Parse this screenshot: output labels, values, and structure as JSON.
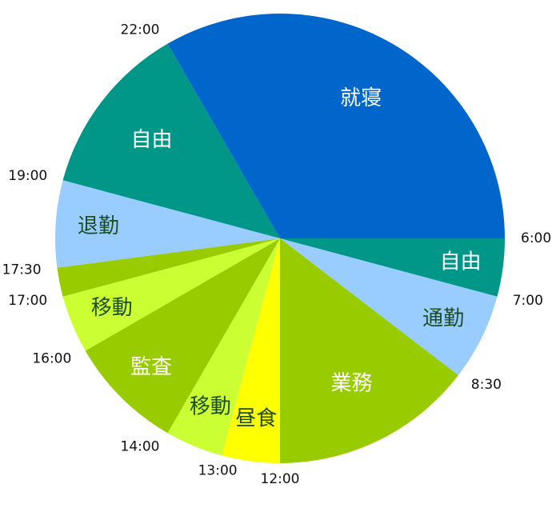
{
  "chart_data": {
    "type": "pie",
    "unit": "hours",
    "clock_start": "6:00",
    "slices": [
      {
        "label": "自由",
        "start": "6:00",
        "end": "7:00",
        "hours": 1.0,
        "color": "#009688",
        "text_color": "#ffffff"
      },
      {
        "label": "通勤",
        "start": "7:00",
        "end": "8:30",
        "hours": 1.5,
        "color": "#99ccff",
        "text_color": "#1f4d1f"
      },
      {
        "label": "業務",
        "start": "8:30",
        "end": "12:00",
        "hours": 3.5,
        "color": "#99cc00",
        "text_color": "#ffffff"
      },
      {
        "label": "昼食",
        "start": "12:00",
        "end": "13:00",
        "hours": 1.0,
        "color": "#ffff00",
        "text_color": "#1f4d1f"
      },
      {
        "label": "移動",
        "start": "13:00",
        "end": "14:00",
        "hours": 1.0,
        "color": "#ccff33",
        "text_color": "#1f4d1f"
      },
      {
        "label": "監査",
        "start": "14:00",
        "end": "16:00",
        "hours": 2.0,
        "color": "#99cc00",
        "text_color": "#ffffff"
      },
      {
        "label": "移動",
        "start": "16:00",
        "end": "17:00",
        "hours": 1.0,
        "color": "#ccff33",
        "text_color": "#1f4d1f"
      },
      {
        "label": "",
        "start": "17:00",
        "end": "17:30",
        "hours": 0.5,
        "color": "#99cc00",
        "text_color": "#ffffff"
      },
      {
        "label": "退勤",
        "start": "17:30",
        "end": "19:00",
        "hours": 1.5,
        "color": "#99ccff",
        "text_color": "#1f4d1f"
      },
      {
        "label": "自由",
        "start": "19:00",
        "end": "22:00",
        "hours": 3.0,
        "color": "#009688",
        "text_color": "#ffffff"
      },
      {
        "label": "就寝",
        "start": "22:00",
        "end": "6:00",
        "hours": 8.0,
        "color": "#0066cc",
        "text_color": "#ffffff"
      }
    ],
    "boundary_labels": [
      "6:00",
      "7:00",
      "8:30",
      "12:00",
      "13:00",
      "14:00",
      "16:00",
      "17:00",
      "17:30",
      "19:00",
      "22:00"
    ]
  }
}
